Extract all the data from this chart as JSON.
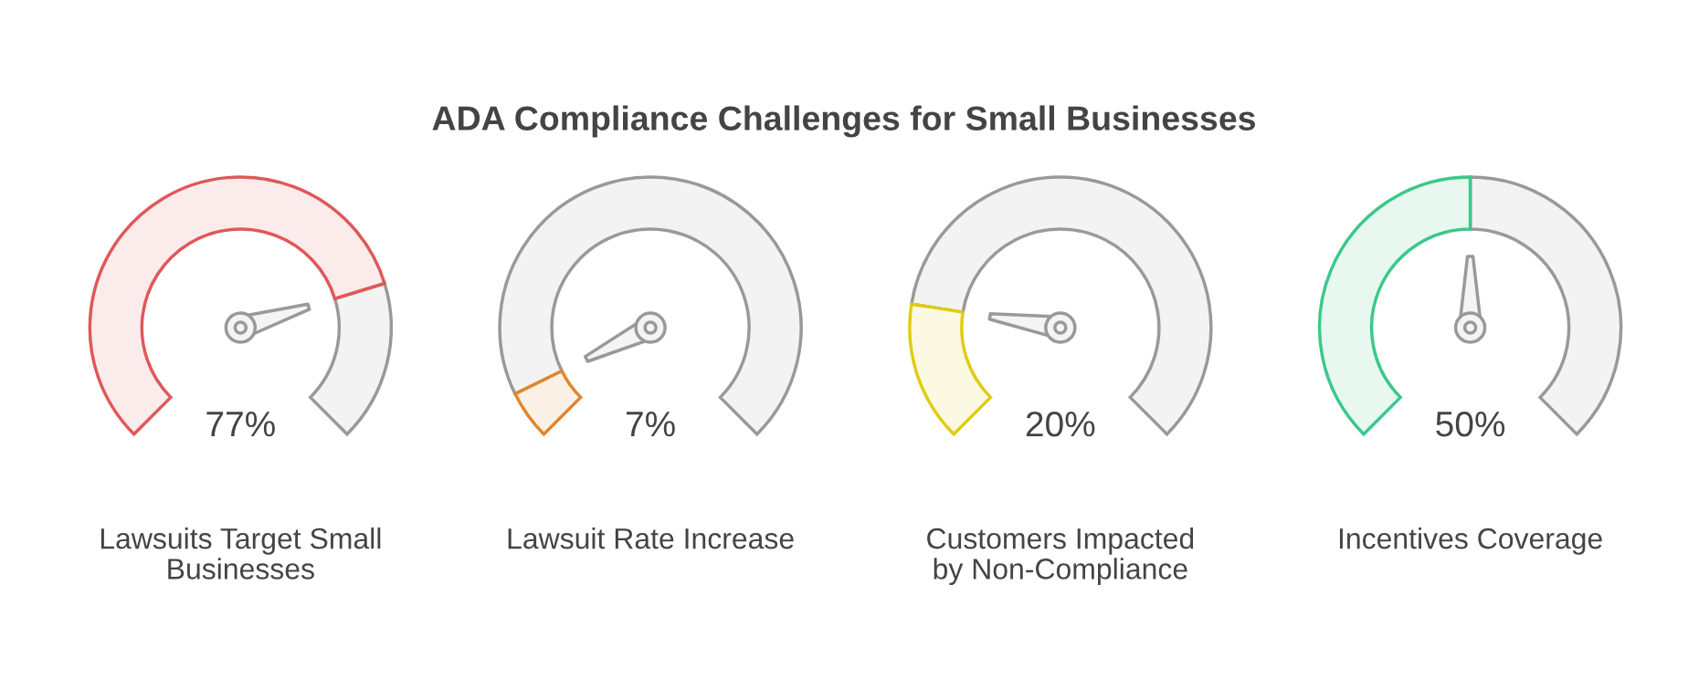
{
  "chart_data": [
    {
      "type": "other",
      "title": "ADA Compliance Challenges for Small Businesses"
    },
    {
      "type": "donut",
      "title": "Lawsuits Target Small\nBusinesses",
      "categories": [
        null,
        null
      ],
      "values": [
        77,
        23
      ],
      "colors": [
        "#e05858",
        "#999999"
      ],
      "annotations": [
        "77%"
      ]
    },
    {
      "type": "donut",
      "title": "Lawsuit Rate Increase",
      "categories": [
        null,
        null
      ],
      "values": [
        7,
        93
      ],
      "colors": [
        "#e0862c",
        "#999999"
      ],
      "annotations": [
        "7%"
      ]
    },
    {
      "type": "donut",
      "title": "Customers Impacted\nby Non-Compliance",
      "categories": [
        null,
        null
      ],
      "values": [
        20,
        80
      ],
      "colors": [
        "#e0cc10",
        "#999999"
      ],
      "annotations": [
        "20%"
      ]
    },
    {
      "type": "donut",
      "title": "Incentives Coverage",
      "categories": [
        null,
        null
      ],
      "values": [
        50,
        50
      ],
      "colors": [
        "#3cc88a",
        "#999999"
      ],
      "annotations": [
        "50%"
      ]
    }
  ]
}
